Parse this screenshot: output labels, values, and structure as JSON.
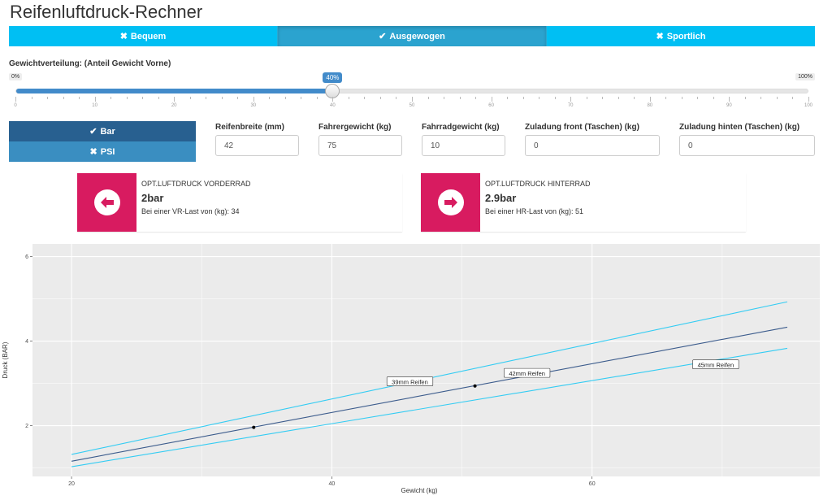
{
  "app": {
    "title": "Reifenluftdruck-Rechner"
  },
  "mode_toggle": [
    {
      "label": "Bequem",
      "icon": "times-icon",
      "active": false
    },
    {
      "label": "Ausgewogen",
      "icon": "check-icon",
      "active": true
    },
    {
      "label": "Sportlich",
      "icon": "times-icon",
      "active": false
    }
  ],
  "weight_slider": {
    "label": "Gewichtverteilung: (Anteil Gewicht Vorne)",
    "min_label": "0%",
    "max_label": "100%",
    "value": 40,
    "value_label": "40%",
    "ticks": [
      "0",
      "10",
      "20",
      "30",
      "40",
      "50",
      "60",
      "70",
      "80",
      "90",
      "100"
    ]
  },
  "unit_toggle": {
    "bar": {
      "label": "Bar",
      "icon": "check-icon",
      "active": true
    },
    "psi": {
      "label": "PSI",
      "icon": "times-icon",
      "active": false
    }
  },
  "inputs": {
    "tire_width": {
      "label": "Reifenbreite (mm)",
      "value": "42"
    },
    "rider_weight": {
      "label": "Fahrergewicht (kg)",
      "value": "75"
    },
    "bike_weight": {
      "label": "Fahrradgewicht (kg)",
      "value": "10"
    },
    "load_front": {
      "label": "Zuladung front (Taschen) (kg)",
      "value": "0"
    },
    "load_rear": {
      "label": "Zuladung hinten (Taschen) (kg)",
      "value": "0"
    }
  },
  "front_box": {
    "caption": "OPT.LUFTDRUCK VORDERRAD",
    "value": "2bar",
    "sub": "Bei einer VR-Last von (kg): 34",
    "icon": "arrow-circle-left-icon",
    "color": "#D81B60"
  },
  "rear_box": {
    "caption": "OPT.LUFTDRUCK HINTERRAD",
    "value": "2.9bar",
    "sub": "Bei einer HR-Last von (kg): 51",
    "icon": "arrow-circle-right-icon",
    "color": "#D81B60"
  },
  "chart_data": {
    "type": "line",
    "xlabel": "Gewicht (kg)",
    "ylabel": "Druck (BAR)",
    "xlim": [
      17,
      77.5
    ],
    "ylim": [
      0.8,
      6.3
    ],
    "xticks": [
      20,
      40,
      60
    ],
    "yticks": [
      2,
      4,
      6
    ],
    "grid": true,
    "series": [
      {
        "name": "39mm Reifen",
        "color": "#33CCF3",
        "x": [
          20,
          75
        ],
        "y": [
          1.32,
          4.93
        ],
        "label_x": 46,
        "label_y": 3.04
      },
      {
        "name": "42mm Reifen",
        "color": "#3B5B8C",
        "x": [
          20,
          75
        ],
        "y": [
          1.16,
          4.33
        ],
        "label_x": 55,
        "label_y": 3.24
      },
      {
        "name": "45mm Reifen",
        "color": "#33CCF3",
        "x": [
          20,
          75
        ],
        "y": [
          1.03,
          3.83
        ],
        "label_x": 69.5,
        "label_y": 3.44
      }
    ],
    "points": [
      {
        "x": 34,
        "y": 1.96
      },
      {
        "x": 51,
        "y": 2.94
      }
    ]
  }
}
